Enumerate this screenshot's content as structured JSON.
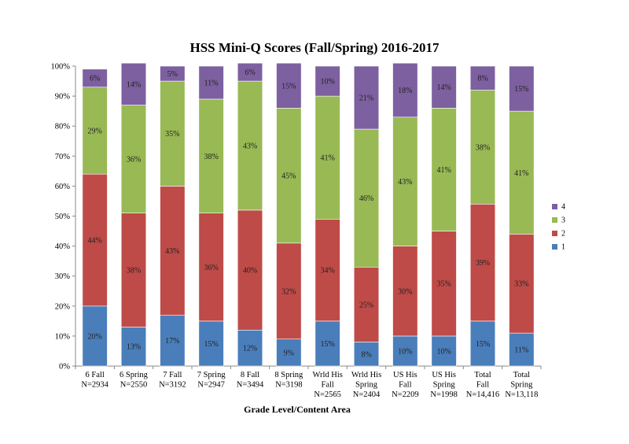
{
  "chart_data": {
    "type": "bar",
    "stacked": true,
    "title": "HSS Mini-Q Scores (Fall/Spring) 2016-2017",
    "xlabel": "Grade Level/Content Area",
    "ylabel": "",
    "ylim": [
      0,
      100
    ],
    "yticks": [
      "0%",
      "10%",
      "20%",
      "30%",
      "40%",
      "50%",
      "60%",
      "70%",
      "80%",
      "90%",
      "100%"
    ],
    "categories": [
      [
        "6 Fall",
        "N=2934"
      ],
      [
        "6 Spring",
        "N=2550"
      ],
      [
        "7 Fall",
        "N=3192"
      ],
      [
        "7 Spring",
        "N=2947"
      ],
      [
        "8 Fall",
        "N=3494"
      ],
      [
        "8 Spring",
        "N=3198"
      ],
      [
        "Wrld His",
        "Fall",
        "N=2565"
      ],
      [
        "Wrld His",
        "Spring",
        "N=2404"
      ],
      [
        "US His",
        "Fall",
        "N=2209"
      ],
      [
        "US His",
        "Spring",
        "N=1998"
      ],
      [
        "Total",
        "Fall",
        "N=14,416"
      ],
      [
        "Total",
        "Spring",
        "N=13,118"
      ]
    ],
    "series": [
      {
        "name": "1",
        "color": "#4a7ebb",
        "values": [
          20,
          13,
          17,
          15,
          12,
          9,
          15,
          8,
          10,
          10,
          15,
          11
        ]
      },
      {
        "name": "2",
        "color": "#be4b48",
        "values": [
          44,
          38,
          43,
          36,
          40,
          32,
          34,
          25,
          30,
          35,
          39,
          33
        ]
      },
      {
        "name": "3",
        "color": "#98b954",
        "values": [
          29,
          36,
          35,
          38,
          43,
          45,
          41,
          46,
          43,
          41,
          38,
          41
        ]
      },
      {
        "name": "4",
        "color": "#7d60a0",
        "values": [
          6,
          14,
          5,
          11,
          6,
          15,
          10,
          21,
          18,
          14,
          8,
          15
        ]
      }
    ],
    "legend_position": "right",
    "grid": false
  }
}
